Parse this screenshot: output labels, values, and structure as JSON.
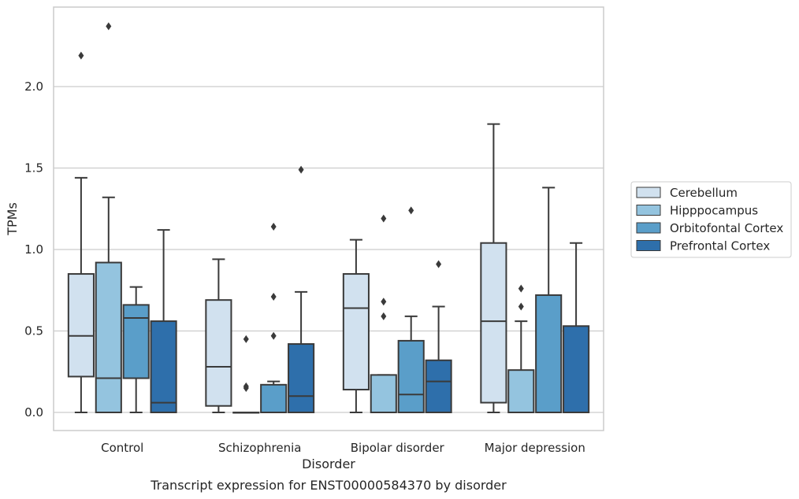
{
  "chart_data": {
    "type": "boxplot",
    "title": "",
    "caption": "Transcript expression for ENST00000584370 by disorder",
    "xlabel": "Disorder",
    "ylabel": "TPMs",
    "ylim": [
      -0.11,
      2.48
    ],
    "yticks": [
      0.0,
      0.5,
      1.0,
      1.5,
      2.0
    ],
    "ytick_labels": [
      "0.0",
      "0.5",
      "1.0",
      "1.5",
      "2.0"
    ],
    "categories": [
      "Control",
      "Schizophrenia",
      "Bipolar disorder",
      "Major depression"
    ],
    "grid": "horizontal",
    "legend_position": "right",
    "series": [
      {
        "name": "Cerebellum",
        "color": "#d1e1ef",
        "boxes": [
          {
            "whisker_low": 0.0,
            "q1": 0.22,
            "median": 0.47,
            "q3": 0.85,
            "whisker_high": 1.44,
            "outliers": [
              2.19
            ]
          },
          {
            "whisker_low": 0.0,
            "q1": 0.04,
            "median": 0.28,
            "q3": 0.69,
            "whisker_high": 0.94,
            "outliers": []
          },
          {
            "whisker_low": 0.0,
            "q1": 0.14,
            "median": 0.64,
            "q3": 0.85,
            "whisker_high": 1.06,
            "outliers": []
          },
          {
            "whisker_low": 0.0,
            "q1": 0.06,
            "median": 0.56,
            "q3": 1.04,
            "whisker_high": 1.77,
            "outliers": []
          }
        ]
      },
      {
        "name": "Hipppocampus",
        "color": "#94c4df",
        "boxes": [
          {
            "whisker_low": 0.0,
            "q1": 0.0,
            "median": 0.21,
            "q3": 0.92,
            "whisker_high": 1.32,
            "outliers": [
              2.37
            ]
          },
          {
            "whisker_low": 0.0,
            "q1": 0.0,
            "median": 0.0,
            "q3": 0.0,
            "whisker_high": 0.0,
            "outliers": [
              0.16,
              0.15,
              0.45
            ]
          },
          {
            "whisker_low": 0.0,
            "q1": 0.0,
            "median": 0.0,
            "q3": 0.23,
            "whisker_high": 0.23,
            "outliers": [
              0.59,
              0.68,
              1.19
            ]
          },
          {
            "whisker_low": 0.0,
            "q1": 0.0,
            "median": 0.0,
            "q3": 0.26,
            "whisker_high": 0.56,
            "outliers": [
              0.65,
              0.76
            ]
          }
        ]
      },
      {
        "name": "Orbitofontal Cortex",
        "color": "#5a9ec9",
        "boxes": [
          {
            "whisker_low": 0.0,
            "q1": 0.21,
            "median": 0.58,
            "q3": 0.66,
            "whisker_high": 0.77,
            "outliers": []
          },
          {
            "whisker_low": 0.0,
            "q1": 0.0,
            "median": 0.0,
            "q3": 0.17,
            "whisker_high": 0.19,
            "outliers": [
              0.47,
              0.71,
              1.14
            ]
          },
          {
            "whisker_low": 0.0,
            "q1": 0.0,
            "median": 0.11,
            "q3": 0.44,
            "whisker_high": 0.59,
            "outliers": [
              1.24
            ]
          },
          {
            "whisker_low": 0.0,
            "q1": 0.0,
            "median": 0.0,
            "q3": 0.72,
            "whisker_high": 1.38,
            "outliers": []
          }
        ]
      },
      {
        "name": "Prefrontal Cortex",
        "color": "#2e6fab",
        "boxes": [
          {
            "whisker_low": 0.0,
            "q1": 0.0,
            "median": 0.06,
            "q3": 0.56,
            "whisker_high": 1.12,
            "outliers": []
          },
          {
            "whisker_low": 0.0,
            "q1": 0.0,
            "median": 0.1,
            "q3": 0.42,
            "whisker_high": 0.74,
            "outliers": [
              1.49
            ]
          },
          {
            "whisker_low": 0.0,
            "q1": 0.0,
            "median": 0.19,
            "q3": 0.32,
            "whisker_high": 0.65,
            "outliers": [
              0.91
            ]
          },
          {
            "whisker_low": 0.0,
            "q1": 0.0,
            "median": 0.0,
            "q3": 0.53,
            "whisker_high": 1.04,
            "outliers": []
          }
        ]
      }
    ]
  }
}
